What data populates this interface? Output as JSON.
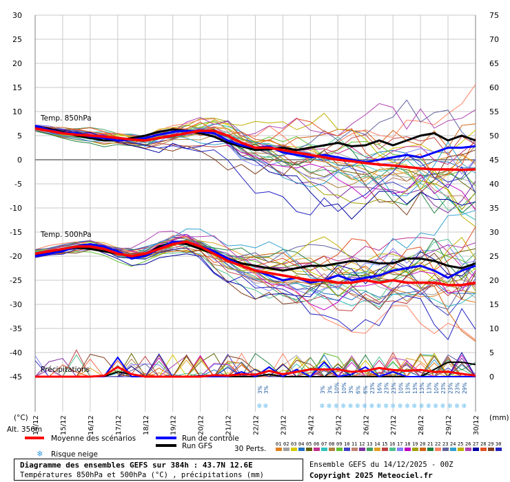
{
  "chart_data": {
    "type": "line",
    "title": "Diagramme des ensembles GEFS sur 384h : 43.7N 12.6E",
    "subtitle": "Températures 850hPa et 500hPa (°C) , précipitations (mm)",
    "run_info": "Ensemble GEFS du 14/12/2025 - 00Z",
    "copyright": "Copyright 2025 Meteociel.fr",
    "altitude": "Alt. 356m",
    "left_axis_unit": "(°C)",
    "right_axis_unit": "(mm)",
    "left_ticks": [
      30,
      25,
      20,
      15,
      10,
      5,
      0,
      -5,
      -10,
      -15,
      -20,
      -25,
      -30,
      -35,
      -40,
      -45
    ],
    "right_ticks": [
      75,
      70,
      65,
      60,
      55,
      50,
      45,
      40,
      35,
      30,
      25,
      20,
      15,
      10,
      5,
      0
    ],
    "ylim": [
      -45,
      30
    ],
    "x_dates": [
      "15/12",
      "16/12",
      "17/12",
      "18/12",
      "19/12",
      "20/12",
      "21/12",
      "22/12",
      "23/12",
      "24/12",
      "25/12",
      "26/12",
      "27/12",
      "28/12",
      "29/12",
      "30/12"
    ],
    "x_first_label": "14/12",
    "section_labels": [
      "Temp. 850hPa",
      "Temp. 500hPa",
      "Précipitations"
    ],
    "legend": {
      "mean": "Moyenne des scénarios",
      "control": "Run de contrôle",
      "gfs": "Run GFS",
      "snow": "Risque neige",
      "perts": "30 Perts."
    },
    "member_numbers": [
      "01",
      "02",
      "03",
      "04",
      "05",
      "06",
      "07",
      "08",
      "09",
      "10",
      "11",
      "12",
      "13",
      "14",
      "15",
      "16",
      "17",
      "18",
      "19",
      "20",
      "21",
      "22",
      "23",
      "24",
      "25",
      "26",
      "27",
      "28",
      "29",
      "30"
    ],
    "member_colors": [
      "#e0801c",
      "#a0a0a0",
      "#d8c800",
      "#2070c0",
      "#606000",
      "#c03090",
      "#30c0c0",
      "#b08040",
      "#60c030",
      "#4040c8",
      "#c08070",
      "#8030a0",
      "#40a060",
      "#e0a020",
      "#c04040",
      "#50c090",
      "#8080ff",
      "#c000c0",
      "#a0a000",
      "#d06010",
      "#208040",
      "#ff8060",
      "#6060a0",
      "#30a0d0",
      "#c0b000",
      "#b040b0",
      "#0000a0",
      "#e05020",
      "#804020",
      "#2020c0"
    ],
    "snow_risk_early": [
      "3%",
      "3%"
    ],
    "snow_risk_late": [
      "3%",
      "3%",
      "10%",
      "10%",
      "3%",
      "6%",
      "6%",
      "23%",
      "16%",
      "23%",
      "23%",
      "10%",
      "13%",
      "13%",
      "13%",
      "13%",
      "10%",
      "23%",
      "23%",
      "23%",
      "29%"
    ],
    "series": [
      {
        "name": "Moyenne des scénarios",
        "color": "#ff0000",
        "t850": [
          6.5,
          6.0,
          5.5,
          5.2,
          5.0,
          4.8,
          4.5,
          4.2,
          4.0,
          4.5,
          5.0,
          5.5,
          6.0,
          6.0,
          5.0,
          3.5,
          2.5,
          2.5,
          2.0,
          1.5,
          1.0,
          0.5,
          0.0,
          -0.3,
          -0.7,
          -1.0,
          -1.2,
          -1.5,
          -1.8,
          -2.0,
          -2.0,
          -2.1,
          -2.0
        ],
        "t500": [
          -19.5,
          -19.0,
          -18.5,
          -18.0,
          -18.0,
          -18.5,
          -19.5,
          -20.0,
          -19.5,
          -18.5,
          -17.5,
          -17.0,
          -18.0,
          -19.5,
          -21.0,
          -22.0,
          -23.0,
          -23.5,
          -24.0,
          -24.5,
          -25.0,
          -25.0,
          -25.5,
          -25.5,
          -25.0,
          -25.5,
          -25.0,
          -25.5,
          -25.5,
          -25.5,
          -26.0,
          -26.0,
          -25.5
        ],
        "precip": [
          0,
          0,
          0,
          0,
          0,
          0.2,
          2.0,
          0.5,
          0,
          0,
          0,
          0,
          0,
          0.3,
          0.2,
          0.5,
          0.4,
          1.2,
          0.5,
          1.0,
          1.5,
          1.5,
          1.5,
          1.0,
          1.2,
          1.8,
          1.4,
          1.2,
          1.4,
          1.0,
          1.0,
          0.6,
          0.2
        ]
      },
      {
        "name": "Run de contrôle",
        "color": "#0000ff",
        "t850": [
          7.0,
          6.2,
          5.6,
          5.5,
          4.8,
          4.5,
          4.0,
          4.2,
          4.5,
          5.2,
          5.8,
          6.0,
          5.8,
          5.5,
          4.0,
          3.0,
          2.5,
          2.8,
          1.5,
          1.0,
          0.5,
          1.0,
          0.5,
          0.0,
          -0.5,
          0.0,
          0.5,
          1.0,
          0.5,
          1.5,
          2.5,
          2.5,
          2.8
        ],
        "t500": [
          -20.0,
          -19.5,
          -19.0,
          -18.0,
          -17.5,
          -18.0,
          -19.0,
          -20.5,
          -20.0,
          -18.5,
          -17.0,
          -17.0,
          -18.0,
          -19.0,
          -20.5,
          -22.0,
          -23.0,
          -24.0,
          -25.0,
          -24.5,
          -25.5,
          -25.0,
          -24.0,
          -25.0,
          -24.5,
          -24.0,
          -23.0,
          -22.5,
          -22.0,
          -23.0,
          -24.5,
          -23.0,
          -22.0
        ],
        "precip": [
          0,
          0,
          0,
          0,
          0,
          0,
          4.0,
          0,
          0,
          0,
          0,
          0,
          0,
          0,
          0,
          1.0,
          0,
          2.0,
          0,
          1.5,
          0,
          3.0,
          0,
          0.5,
          2.0,
          0,
          1.0,
          0,
          0,
          0,
          0,
          0,
          0
        ]
      },
      {
        "name": "Run GFS",
        "color": "#000000",
        "t850": [
          6.8,
          6.4,
          5.8,
          5.0,
          4.5,
          4.0,
          4.0,
          4.5,
          5.0,
          5.8,
          6.3,
          6.0,
          5.5,
          4.8,
          3.5,
          2.8,
          2.0,
          2.2,
          2.5,
          2.0,
          2.5,
          3.0,
          3.5,
          2.8,
          3.0,
          4.0,
          3.0,
          4.0,
          5.0,
          5.5,
          4.0,
          5.0,
          4.0
        ],
        "t500": [
          -19.8,
          -19.5,
          -18.8,
          -18.2,
          -18.5,
          -19.0,
          -19.5,
          -20.0,
          -19.8,
          -18.0,
          -17.2,
          -17.5,
          -18.5,
          -19.5,
          -20.5,
          -21.5,
          -22.0,
          -22.5,
          -23.0,
          -22.5,
          -22.0,
          -22.0,
          -21.5,
          -21.0,
          -21.0,
          -21.5,
          -21.5,
          -20.5,
          -20.5,
          -21.0,
          -22.0,
          -22.5,
          -21.5
        ],
        "precip": [
          0,
          0,
          0,
          0,
          0,
          0,
          1.0,
          0.5,
          0,
          0,
          0,
          0,
          0,
          0,
          0,
          0,
          0,
          0.5,
          0,
          0,
          0,
          0,
          0,
          0,
          0,
          0,
          0,
          0,
          0,
          1.5,
          3.0,
          3.0,
          2.5
        ]
      }
    ]
  }
}
